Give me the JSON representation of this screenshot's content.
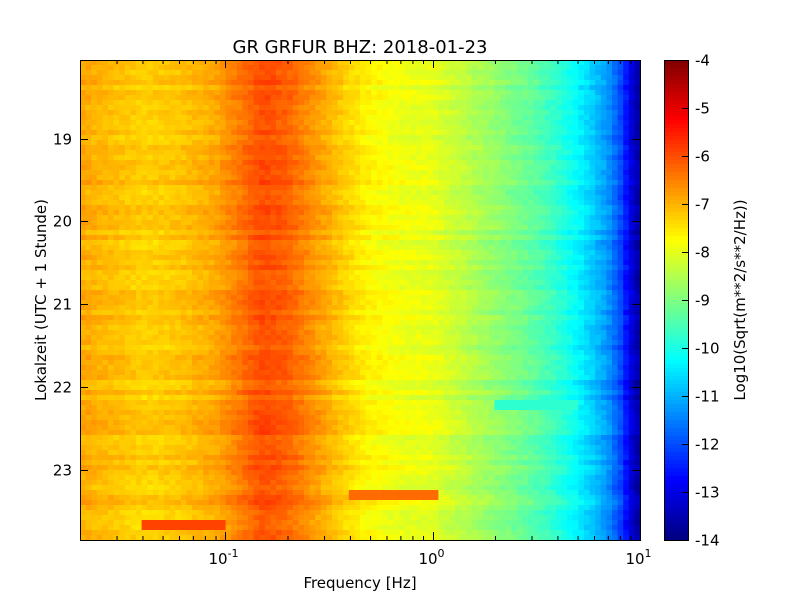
{
  "chart_data": {
    "type": "heatmap",
    "title": "GR GRFUR BHZ: 2018-01-23",
    "xlabel": "Frequency [Hz]",
    "ylabel": "Lokalzeit (UTC + 1 Stunde)",
    "x_scale": "log",
    "xlim": [
      0.02,
      10
    ],
    "ylim": [
      18.05,
      23.85
    ],
    "y_inverted": true,
    "x_ticks": [
      {
        "value": 0.1,
        "base": "10",
        "exp": "-1"
      },
      {
        "value": 1,
        "base": "10",
        "exp": "0"
      },
      {
        "value": 10,
        "base": "10",
        "exp": "1"
      }
    ],
    "y_ticks": [
      {
        "value": 19,
        "label": "19"
      },
      {
        "value": 20,
        "label": "20"
      },
      {
        "value": 21,
        "label": "21"
      },
      {
        "value": 22,
        "label": "22"
      },
      {
        "value": 23,
        "label": "23"
      }
    ],
    "colorbar": {
      "label": "Log10(Sqrt(m**2/s**2/Hz))",
      "range": [
        -14,
        -4
      ],
      "ticks": [
        "-4",
        "-5",
        "-6",
        "-7",
        "-8",
        "-9",
        "-10",
        "-11",
        "-12",
        "-13",
        "-14"
      ],
      "colormap": "jet"
    },
    "spectrum_profile": {
      "frequency_hz": [
        0.02,
        0.04,
        0.06,
        0.09,
        0.12,
        0.15,
        0.2,
        0.3,
        0.4,
        0.5,
        0.7,
        1.0,
        1.3,
        2.0,
        3.0,
        4.0,
        5.0,
        6.0,
        7.0,
        8.0,
        9.0,
        10.0
      ],
      "value_log10": [
        -6.9,
        -7.3,
        -7.2,
        -6.9,
        -6.4,
        -6.0,
        -6.2,
        -6.9,
        -7.4,
        -7.7,
        -7.9,
        -8.0,
        -8.3,
        -8.8,
        -9.3,
        -9.8,
        -10.3,
        -10.8,
        -11.3,
        -12.0,
        -13.0,
        -13.8
      ]
    },
    "features": [
      {
        "description_time": 23.33,
        "freq_range": [
          0.4,
          1.1
        ],
        "value_log10": -6.3
      },
      {
        "description_time": 23.68,
        "freq_range": [
          0.04,
          0.1
        ],
        "value_log10": -5.9
      },
      {
        "description_time": 22.2,
        "freq_range": [
          2.0,
          5.0
        ],
        "value_log10": -9.8
      }
    ]
  }
}
